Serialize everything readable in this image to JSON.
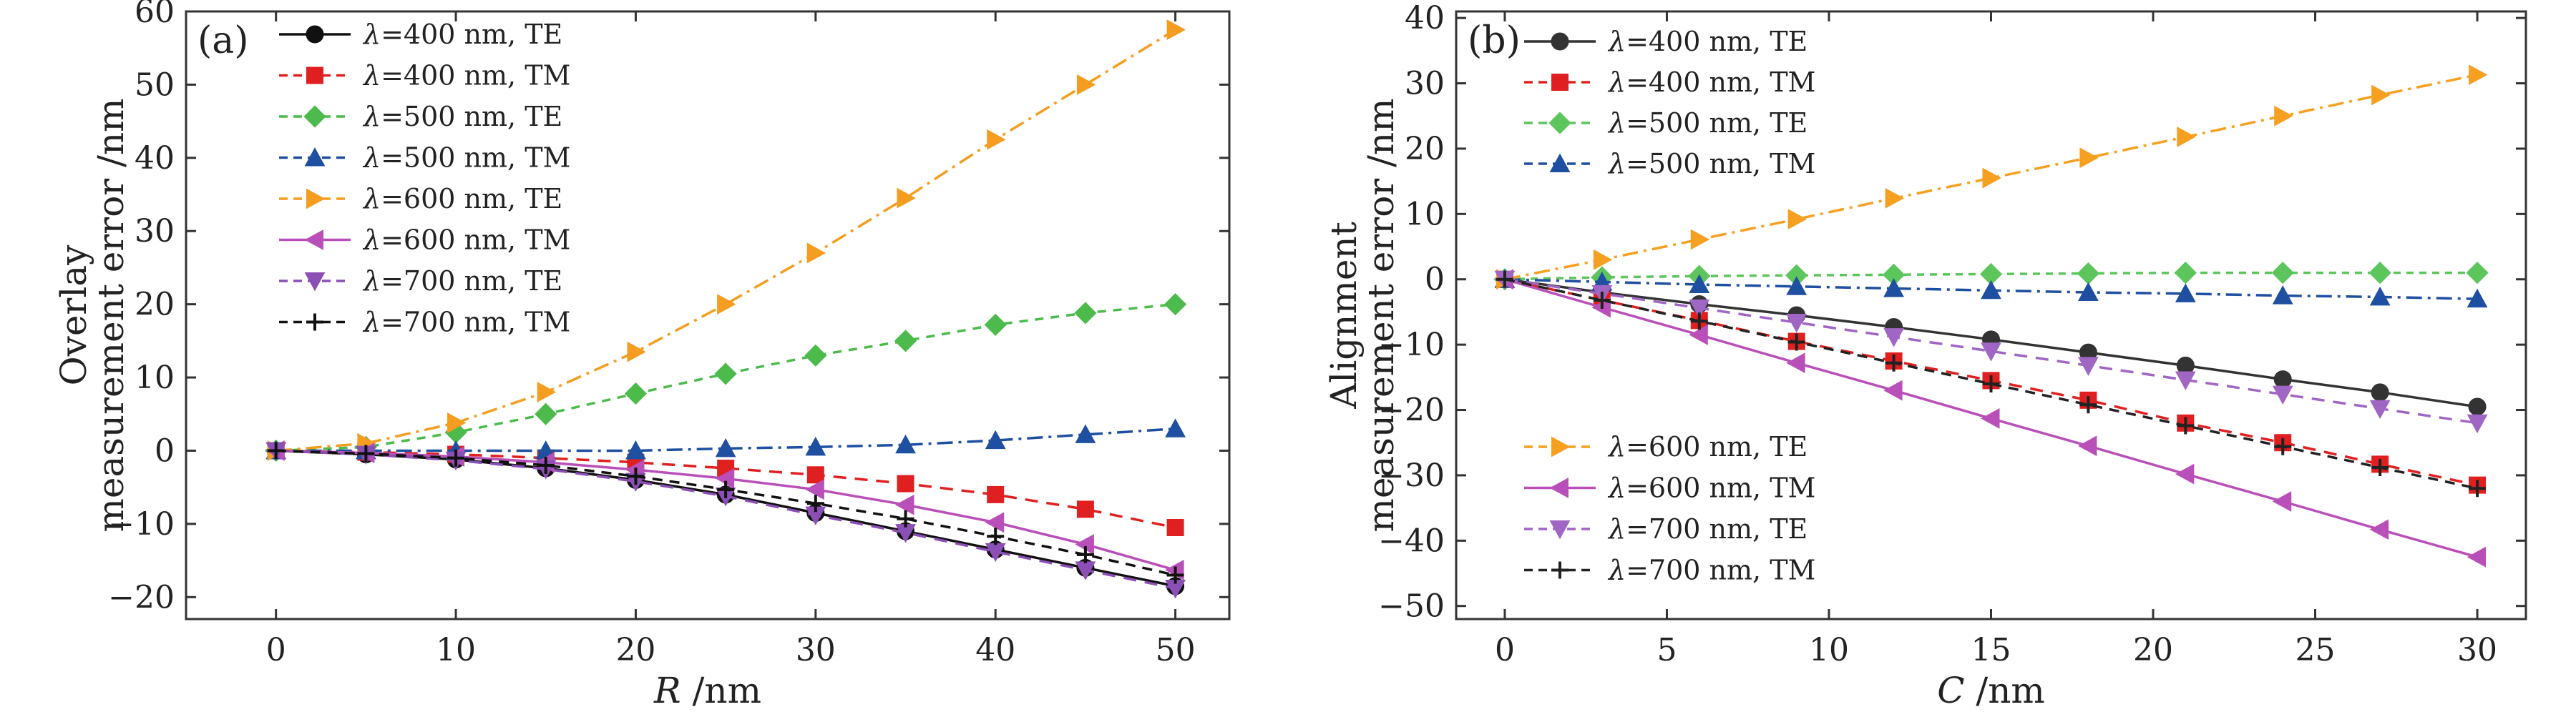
{
  "chart_data": [
    {
      "type": "line",
      "panel_label": "(a)",
      "xlabel_var": "R",
      "xlabel_unit": " /nm",
      "ylabel_lines": [
        "Overlay",
        "measurement error /nm"
      ],
      "xlim": [
        -5,
        53
      ],
      "ylim": [
        -23,
        60
      ],
      "xticks": [
        0,
        10,
        20,
        30,
        40,
        50
      ],
      "yticks": [
        -20,
        -10,
        0,
        10,
        20,
        30,
        40,
        50,
        60
      ],
      "ytick_labels": [
        "−20",
        "−10",
        "0",
        "10",
        "20",
        "30",
        "40",
        "50",
        "60"
      ],
      "legend_position": "top-left",
      "x": [
        0,
        5,
        10,
        15,
        20,
        25,
        30,
        35,
        40,
        45,
        50
      ],
      "series": [
        {
          "name": "λ=400 nm, TE",
          "lambda": "λ",
          "rest": "=400 nm, TE",
          "color": "#111111",
          "marker": "circle",
          "dash": "none",
          "values": [
            0,
            -0.5,
            -1.2,
            -2.4,
            -4.0,
            -6.0,
            -8.5,
            -11.0,
            -13.5,
            -16.0,
            -18.5
          ]
        },
        {
          "name": "λ=400 nm, TM",
          "lambda": "λ",
          "rest": "=400 nm, TM",
          "color": "#e02020",
          "marker": "square",
          "dash": "18,12",
          "values": [
            0,
            -0.2,
            -0.5,
            -1.0,
            -1.6,
            -2.4,
            -3.3,
            -4.5,
            -6.0,
            -8.0,
            -10.5
          ]
        },
        {
          "name": "λ=500 nm, TE",
          "lambda": "λ",
          "rest": "=500 nm, TE",
          "color": "#4cbb4c",
          "marker": "diamond",
          "dash": "12,10",
          "values": [
            0,
            0.5,
            2.5,
            5.0,
            7.8,
            10.5,
            13.0,
            15.0,
            17.2,
            18.8,
            20.0
          ]
        },
        {
          "name": "λ=500 nm, TM",
          "lambda": "λ",
          "rest": "=500 nm, TM",
          "color": "#1f4fa0",
          "marker": "triangle-up",
          "dash": "22,8,4,8",
          "values": [
            0,
            0,
            0,
            0,
            0,
            0.3,
            0.5,
            0.8,
            1.4,
            2.2,
            3.0
          ]
        },
        {
          "name": "λ=600 nm, TE",
          "lambda": "λ",
          "rest": "=600 nm, TE",
          "color": "#f59d20",
          "marker": "triangle-right",
          "dash": "22,8,4,8",
          "values": [
            0,
            1.0,
            3.8,
            8.0,
            13.5,
            20.0,
            27.0,
            34.5,
            42.5,
            50.0,
            57.5
          ]
        },
        {
          "name": "λ=600 nm, TM",
          "lambda": "λ",
          "rest": "=600 nm, TM",
          "color": "#b94fb9",
          "marker": "triangle-left",
          "dash": "none",
          "values": [
            0,
            -0.3,
            -0.8,
            -1.6,
            -2.6,
            -3.8,
            -5.3,
            -7.4,
            -9.8,
            -12.8,
            -16.3
          ]
        },
        {
          "name": "λ=700 nm, TE",
          "lambda": "λ",
          "rest": "=700 nm, TE",
          "color": "#8c4fb5",
          "marker": "triangle-down",
          "dash": "18,12",
          "values": [
            0,
            -0.5,
            -1.3,
            -2.5,
            -4.2,
            -6.2,
            -8.8,
            -11.2,
            -13.8,
            -16.3,
            -18.8
          ]
        },
        {
          "name": "λ=700 nm, TM",
          "lambda": "λ",
          "rest": "=700 nm, TM",
          "color": "#111111",
          "marker": "plus",
          "dash": "14,10",
          "values": [
            0,
            -0.4,
            -1.0,
            -2.0,
            -3.5,
            -5.3,
            -7.2,
            -9.3,
            -11.7,
            -14.2,
            -17.0
          ]
        }
      ]
    },
    {
      "type": "line",
      "panel_label": "(b)",
      "xlabel_var": "C",
      "xlabel_unit": " /nm",
      "ylabel_lines": [
        "Alignment",
        "measurement error /nm"
      ],
      "xlim": [
        -1.5,
        31.5
      ],
      "ylim": [
        -52,
        41
      ],
      "xticks": [
        0,
        5,
        10,
        15,
        20,
        25,
        30
      ],
      "yticks": [
        -50,
        -40,
        -30,
        -20,
        -10,
        0,
        10,
        20,
        30,
        40
      ],
      "ytick_labels": [
        "−50",
        "−40",
        "−30",
        "−20",
        "−10",
        "0",
        "10",
        "20",
        "30",
        "40"
      ],
      "legend_position": "top-left and bottom-left",
      "x": [
        0,
        3,
        6,
        9,
        12,
        15,
        18,
        21,
        24,
        27,
        30
      ],
      "series": [
        {
          "name": "λ=400 nm, TE",
          "lambda": "λ",
          "rest": "=400 nm, TE",
          "color": "#333333",
          "marker": "circle",
          "dash": "none",
          "values": [
            0,
            -2.0,
            -3.8,
            -5.5,
            -7.3,
            -9.2,
            -11.2,
            -13.2,
            -15.3,
            -17.3,
            -19.5
          ]
        },
        {
          "name": "λ=400 nm, TM",
          "lambda": "λ",
          "rest": "=400 nm, TM",
          "color": "#e02020",
          "marker": "square",
          "dash": "18,12",
          "values": [
            0,
            -3.2,
            -6.3,
            -9.5,
            -12.5,
            -15.5,
            -18.5,
            -22.0,
            -25.0,
            -28.3,
            -31.5
          ]
        },
        {
          "name": "λ=500 nm, TE",
          "lambda": "λ",
          "rest": "=500 nm, TE",
          "color": "#5cc55c",
          "marker": "diamond",
          "dash": "10,8",
          "values": [
            0,
            0.3,
            0.5,
            0.6,
            0.7,
            0.8,
            0.9,
            1.0,
            1.0,
            1.0,
            1.0
          ]
        },
        {
          "name": "λ=500 nm, TM",
          "lambda": "λ",
          "rest": "=500 nm, TM",
          "color": "#1f4fa0",
          "marker": "triangle-up",
          "dash": "22,8,4,8",
          "values": [
            0,
            -0.4,
            -0.8,
            -1.1,
            -1.4,
            -1.7,
            -2.0,
            -2.2,
            -2.5,
            -2.7,
            -3.0
          ]
        },
        {
          "name": "λ=600 nm, TE",
          "lambda": "λ",
          "rest": "=600 nm, TE",
          "color": "#f5a020",
          "marker": "triangle-right",
          "dash": "22,8,4,8",
          "values": [
            0,
            3.0,
            6.1,
            9.2,
            12.4,
            15.5,
            18.6,
            21.8,
            25.0,
            28.2,
            31.3
          ]
        },
        {
          "name": "λ=600 nm, TM",
          "lambda": "λ",
          "rest": "=600 nm, TM",
          "color": "#b94fb9",
          "marker": "triangle-left",
          "dash": "none",
          "values": [
            0,
            -4.3,
            -8.5,
            -12.8,
            -17.0,
            -21.3,
            -25.5,
            -29.8,
            -34.0,
            -38.3,
            -42.5
          ]
        },
        {
          "name": "λ=700 nm, TE",
          "lambda": "λ",
          "rest": "=700 nm, TE",
          "color": "#a066c4",
          "marker": "triangle-down",
          "dash": "18,12",
          "values": [
            0,
            -2.2,
            -4.4,
            -6.6,
            -8.8,
            -11.0,
            -13.2,
            -15.4,
            -17.6,
            -19.8,
            -22.0
          ]
        },
        {
          "name": "λ=700 nm, TM",
          "lambda": "λ",
          "rest": "=700 nm, TM",
          "color": "#222222",
          "marker": "plus",
          "dash": "14,10",
          "values": [
            0,
            -3.2,
            -6.4,
            -9.6,
            -12.8,
            -16.0,
            -19.2,
            -22.4,
            -25.6,
            -28.8,
            -32.0
          ]
        }
      ]
    }
  ]
}
